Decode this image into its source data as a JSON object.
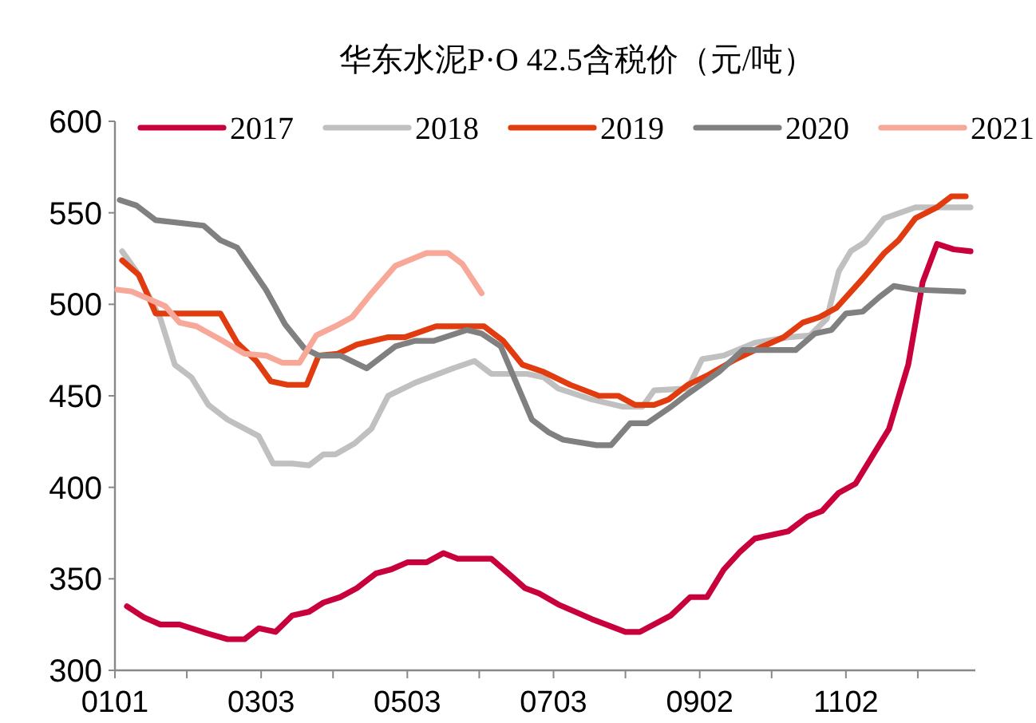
{
  "chart_data": {
    "type": "line",
    "title": "华东水泥P·O 42.5含税价（元/吨）",
    "xlim": [
      "--01-01",
      "--12-26"
    ],
    "xticks": [
      {
        "value": "--01-01",
        "label": "0101"
      },
      {
        "value": "--01-31",
        "label": null
      },
      {
        "value": "--03-03",
        "label": "0303"
      },
      {
        "value": "--04-02",
        "label": null
      },
      {
        "value": "--05-03",
        "label": "0503"
      },
      {
        "value": "--06-02",
        "label": null
      },
      {
        "value": "--07-03",
        "label": "0703"
      },
      {
        "value": "--08-02",
        "label": null
      },
      {
        "value": "--09-02",
        "label": "0902"
      },
      {
        "value": "--10-02",
        "label": null
      },
      {
        "value": "--11-02",
        "label": "1102"
      },
      {
        "value": "--12-02",
        "label": null
      }
    ],
    "ylim": [
      300,
      600
    ],
    "yticks": [
      300,
      350,
      400,
      450,
      500,
      550,
      600
    ],
    "grid": false,
    "legend": "top",
    "marker": "none",
    "line_style": "solid",
    "series": [
      {
        "name": "2017",
        "color": "#c8003c",
        "x": [
          "--01-06",
          "--01-13",
          "--01-20",
          "--01-28",
          "--02-09",
          "--02-17",
          "--02-24",
          "--03-02",
          "--03-09",
          "--03-16",
          "--03-23",
          "--03-29",
          "--04-05",
          "--04-12",
          "--04-20",
          "--04-26",
          "--05-03",
          "--05-11",
          "--05-18",
          "--05-24",
          "--06-07",
          "--06-15",
          "--06-21",
          "--06-27",
          "--07-05",
          "--07-19",
          "--08-02",
          "--08-08",
          "--08-21",
          "--08-29",
          "--09-05",
          "--09-12",
          "--09-19",
          "--09-25",
          "--10-09",
          "--10-17",
          "--10-23",
          "--10-30",
          "--11-06",
          "--11-20",
          "--11-28",
          "--12-04",
          "--12-10",
          "--12-17",
          "--12-24"
        ],
        "values": [
          335,
          329,
          325,
          325,
          320,
          317,
          317,
          323,
          321,
          330,
          332,
          337,
          340,
          345,
          353,
          355,
          359,
          359,
          364,
          361,
          361,
          352,
          345,
          342,
          336,
          328,
          321,
          321,
          330,
          340,
          340,
          355,
          365,
          372,
          376,
          384,
          387,
          397,
          402,
          432,
          467,
          512,
          533,
          530,
          529
        ]
      },
      {
        "name": "2018",
        "color": "#c0c0c0",
        "x": [
          "--01-04",
          "--01-10",
          "--01-20",
          "--01-26",
          "--02-02",
          "--02-09",
          "--02-17",
          "--03-02",
          "--03-08",
          "--03-16",
          "--03-23",
          "--03-29",
          "--04-03",
          "--04-11",
          "--04-18",
          "--04-25",
          "--05-06",
          "--05-22",
          "--05-31",
          "--06-07",
          "--06-22",
          "--06-29",
          "--07-05",
          "--07-19",
          "--08-01",
          "--08-09",
          "--08-14",
          "--08-28",
          "--09-03",
          "--09-12",
          "--09-25",
          "--10-09",
          "--10-18",
          "--10-25",
          "--10-30",
          "--11-04",
          "--11-10",
          "--11-18",
          "--12-01",
          "--12-24"
        ],
        "values": [
          529,
          518,
          492,
          467,
          460,
          445,
          437,
          428,
          413,
          413,
          412,
          418,
          418,
          424,
          432,
          450,
          457,
          465,
          469,
          462,
          462,
          460,
          454,
          448,
          444,
          444,
          453,
          454,
          470,
          472,
          479,
          482,
          483,
          492,
          518,
          529,
          534,
          547,
          553,
          553
        ]
      },
      {
        "name": "2019",
        "color": "#e03c10",
        "x": [
          "--01-04",
          "--01-11",
          "--01-18",
          "--02-14",
          "--02-21",
          "--03-01",
          "--03-07",
          "--03-14",
          "--03-22",
          "--03-27",
          "--04-04",
          "--04-12",
          "--04-25",
          "--05-02",
          "--05-15",
          "--06-04",
          "--06-12",
          "--06-20",
          "--06-29",
          "--07-10",
          "--07-22",
          "--07-30",
          "--08-06",
          "--08-14",
          "--08-20",
          "--08-28",
          "--09-05",
          "--09-17",
          "--09-25",
          "--10-07",
          "--10-15",
          "--10-22",
          "--10-29",
          "--11-09",
          "--11-18",
          "--11-24",
          "--12-01",
          "--12-10",
          "--12-16",
          "--12-22"
        ],
        "values": [
          524,
          516,
          495,
          495,
          479,
          469,
          458,
          456,
          456,
          472,
          473,
          478,
          482,
          482,
          488,
          488,
          480,
          467,
          463,
          456,
          450,
          450,
          445,
          445,
          448,
          456,
          461,
          470,
          475,
          482,
          490,
          493,
          498,
          514,
          528,
          535,
          547,
          553,
          559,
          559
        ]
      },
      {
        "name": "2020",
        "color": "#808080",
        "x": [
          "--01-03",
          "--01-10",
          "--01-18",
          "--02-07",
          "--02-14",
          "--02-21",
          "--03-05",
          "--03-13",
          "--03-21",
          "--03-27",
          "--04-05",
          "--04-16",
          "--04-28",
          "--05-06",
          "--05-14",
          "--05-28",
          "--06-03",
          "--06-11",
          "--06-24",
          "--07-01",
          "--07-07",
          "--07-21",
          "--07-27",
          "--08-04",
          "--08-11",
          "--08-21",
          "--08-28",
          "--09-10",
          "--09-20",
          "--10-12",
          "--10-20",
          "--10-27",
          "--11-02",
          "--11-09",
          "--11-16",
          "--11-22",
          "--12-01",
          "--12-21"
        ],
        "values": [
          557,
          554,
          546,
          543,
          535,
          531,
          508,
          489,
          476,
          472,
          472,
          465,
          477,
          480,
          480,
          486,
          484,
          477,
          437,
          430,
          426,
          423,
          423,
          435,
          435,
          444,
          451,
          463,
          475,
          475,
          484,
          486,
          495,
          496,
          504,
          510,
          508,
          507
        ]
      },
      {
        "name": "2021",
        "color": "#f8a898",
        "x": [
          "--01-02",
          "--01-08",
          "--01-15",
          "--01-22",
          "--01-28",
          "--02-04",
          "--02-15",
          "--02-24",
          "--03-05",
          "--03-12",
          "--03-19",
          "--03-26",
          "--04-03",
          "--04-10",
          "--04-18",
          "--04-28",
          "--05-11",
          "--05-20",
          "--05-26",
          "--06-03"
        ],
        "values": [
          508,
          507,
          503,
          499,
          490,
          488,
          480,
          473,
          472,
          468,
          468,
          483,
          488,
          493,
          506,
          521,
          528,
          528,
          522,
          506
        ]
      }
    ]
  }
}
